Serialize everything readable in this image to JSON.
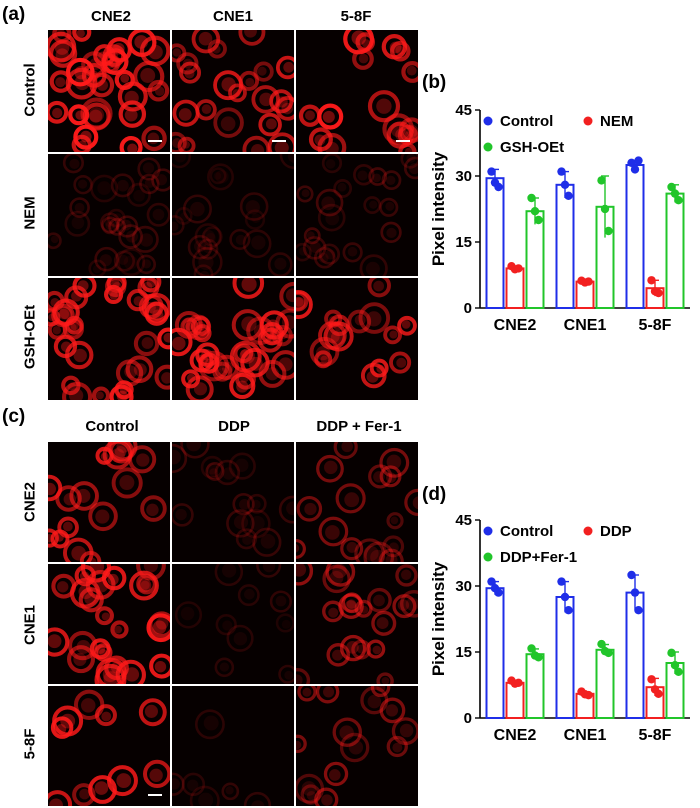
{
  "colors": {
    "control": "#1f2ee8",
    "red": "#f22020",
    "green": "#21c52a",
    "signal": "#ff1a1a"
  },
  "panel_a": {
    "label": "(a)",
    "columns": [
      "CNE2",
      "CNE1",
      "5-8F"
    ],
    "rows": [
      "Control",
      "NEM",
      "GSH-OEt"
    ],
    "intensity": [
      [
        1.0,
        0.8,
        1.0
      ],
      [
        0.22,
        0.18,
        0.25
      ],
      [
        0.95,
        0.9,
        0.85
      ]
    ],
    "density": [
      [
        30,
        22,
        16
      ],
      [
        24,
        18,
        20
      ],
      [
        30,
        30,
        16
      ]
    ]
  },
  "panel_c": {
    "label": "(c)",
    "columns": [
      "Control",
      "DDP",
      "DDP + Fer-1"
    ],
    "rows": [
      "CNE2",
      "CNE1",
      "5-8F"
    ],
    "intensity": [
      [
        0.85,
        0.22,
        0.5
      ],
      [
        0.95,
        0.18,
        0.6
      ],
      [
        0.9,
        0.2,
        0.55
      ]
    ],
    "density": [
      [
        16,
        14,
        16
      ],
      [
        24,
        10,
        18
      ],
      [
        10,
        6,
        14
      ]
    ]
  },
  "chart_data": [
    {
      "panel": "(b)",
      "type": "bar",
      "ylabel": "Pixel intensity",
      "xlabel": "",
      "ylim": [
        0,
        45
      ],
      "yticks": [
        0,
        15,
        30,
        45
      ],
      "categories": [
        "CNE2",
        "CNE1",
        "5-8F"
      ],
      "legend": [
        "Control",
        "NEM",
        "GSH-OEt"
      ],
      "series": [
        {
          "name": "Control",
          "color": "#1f2ee8",
          "values": [
            29.5,
            28.0,
            32.5
          ],
          "err": [
            2.0,
            3.0,
            1.0
          ],
          "points": [
            [
              31.0,
              28.5,
              27.5
            ],
            [
              31.0,
              28.0,
              25.5
            ],
            [
              33.0,
              31.5,
              33.5
            ]
          ]
        },
        {
          "name": "NEM",
          "color": "#f22020",
          "values": [
            9.0,
            6.0,
            4.5
          ],
          "err": [
            0.5,
            0.3,
            1.8
          ],
          "points": [
            [
              9.5,
              8.8,
              9.0
            ],
            [
              6.2,
              5.8,
              6.0
            ],
            [
              6.3,
              3.8,
              3.4
            ]
          ]
        },
        {
          "name": "GSH-OEt",
          "color": "#21c52a",
          "values": [
            22.0,
            23.0,
            26.0
          ],
          "err": [
            3.0,
            7.0,
            2.0
          ],
          "points": [
            [
              25.0,
              22.0,
              20.0
            ],
            [
              29.0,
              22.5,
              17.5
            ],
            [
              27.5,
              26.0,
              24.5
            ]
          ]
        }
      ]
    },
    {
      "panel": "(d)",
      "type": "bar",
      "ylabel": "Pixel intensity",
      "xlabel": "",
      "ylim": [
        0,
        45
      ],
      "yticks": [
        0,
        15,
        30,
        45
      ],
      "categories": [
        "CNE2",
        "CNE1",
        "5-8F"
      ],
      "legend": [
        "Control",
        "DDP",
        "DDP+Fer-1"
      ],
      "series": [
        {
          "name": "Control",
          "color": "#1f2ee8",
          "values": [
            29.5,
            27.5,
            28.5
          ],
          "err": [
            1.5,
            3.5,
            4.0
          ],
          "points": [
            [
              31.0,
              29.5,
              28.5
            ],
            [
              31.0,
              27.5,
              24.5
            ],
            [
              32.5,
              28.5,
              24.5
            ]
          ]
        },
        {
          "name": "DDP",
          "color": "#f22020",
          "values": [
            8.0,
            5.5,
            7.0
          ],
          "err": [
            0.5,
            0.4,
            2.0
          ],
          "points": [
            [
              8.5,
              7.8,
              8.0
            ],
            [
              6.0,
              5.4,
              5.2
            ],
            [
              8.8,
              6.5,
              5.5
            ]
          ]
        },
        {
          "name": "DDP+Fer-1",
          "color": "#21c52a",
          "values": [
            14.5,
            15.5,
            12.5
          ],
          "err": [
            1.2,
            1.2,
            2.5
          ],
          "points": [
            [
              15.8,
              14.2,
              13.8
            ],
            [
              16.8,
              15.2,
              14.8
            ],
            [
              14.8,
              12.0,
              10.5
            ]
          ]
        }
      ]
    }
  ]
}
